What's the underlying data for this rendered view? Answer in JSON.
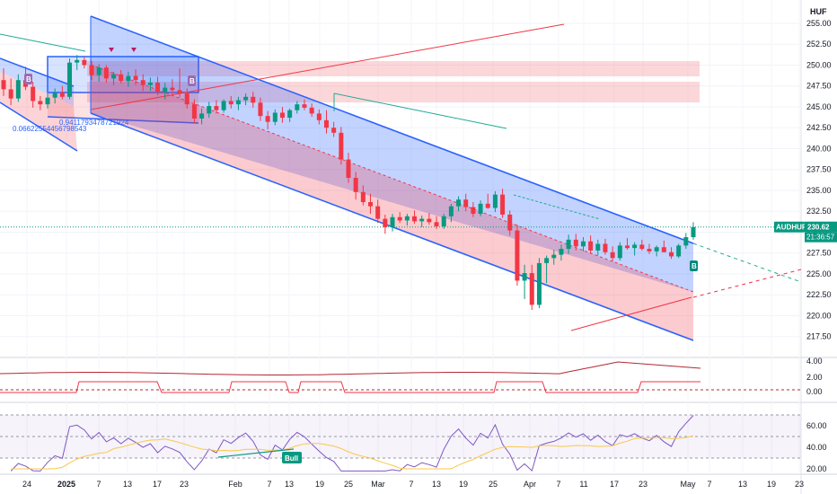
{
  "chart_data": {
    "type": "candlestick",
    "symbol": "AUDHUF",
    "currency": "HUF",
    "last_price": "230.62",
    "countdown": "21:36:57",
    "ylim": [
      215.0,
      256.5
    ],
    "y_ticks": [
      217.5,
      220.0,
      222.5,
      225.0,
      227.5,
      230.0,
      232.5,
      235.0,
      237.5,
      240.0,
      242.5,
      245.0,
      247.5,
      250.0,
      252.5,
      255.0
    ],
    "x_ticks": [
      "24",
      "2025",
      "7",
      "13",
      "17",
      "23",
      "Feb",
      "7",
      "13",
      "19",
      "25",
      "Mar",
      "7",
      "13",
      "19",
      "25",
      "Apr",
      "7",
      "11",
      "17",
      "23",
      "May",
      "7",
      "13",
      "19",
      "23"
    ],
    "annotations": {
      "fib_label_1": "0.9411793478721924",
      "fib_label_2": "0.06622554456798543",
      "signal_badge": "B",
      "bull_label": "Bull"
    },
    "candles": [
      [
        248.2,
        249.6,
        246.3,
        247.1
      ],
      [
        247.1,
        248.4,
        245.2,
        246.0
      ],
      [
        246.0,
        248.9,
        245.6,
        248.2
      ],
      [
        248.2,
        249.8,
        247.0,
        247.4
      ],
      [
        247.4,
        248.0,
        244.9,
        245.7
      ],
      [
        245.7,
        246.3,
        244.6,
        245.3
      ],
      [
        245.3,
        246.6,
        244.8,
        246.1
      ],
      [
        246.1,
        247.2,
        245.4,
        246.7
      ],
      [
        246.7,
        247.5,
        245.9,
        246.2
      ],
      [
        246.2,
        250.8,
        245.9,
        250.3
      ],
      [
        250.3,
        251.2,
        249.4,
        250.6
      ],
      [
        250.6,
        251.0,
        249.6,
        250.0
      ],
      [
        250.0,
        250.5,
        248.2,
        248.8
      ],
      [
        248.8,
        250.1,
        248.0,
        249.7
      ],
      [
        249.7,
        250.0,
        247.9,
        248.4
      ],
      [
        248.4,
        249.2,
        247.6,
        248.9
      ],
      [
        248.9,
        249.4,
        247.8,
        248.1
      ],
      [
        248.1,
        249.2,
        247.4,
        248.7
      ],
      [
        248.7,
        249.5,
        247.6,
        248.2
      ],
      [
        248.2,
        248.9,
        246.9,
        247.6
      ],
      [
        247.6,
        248.5,
        246.9,
        247.9
      ],
      [
        247.9,
        248.6,
        246.4,
        246.8
      ],
      [
        246.8,
        247.9,
        245.9,
        247.3
      ],
      [
        247.3,
        248.3,
        246.4,
        247.0
      ],
      [
        247.0,
        249.6,
        246.1,
        246.6
      ],
      [
        246.6,
        247.2,
        244.8,
        245.3
      ],
      [
        245.3,
        245.9,
        243.0,
        243.6
      ],
      [
        243.6,
        244.8,
        242.9,
        244.2
      ],
      [
        244.2,
        245.6,
        243.7,
        245.1
      ],
      [
        245.1,
        245.8,
        244.2,
        244.6
      ],
      [
        244.6,
        245.9,
        244.3,
        245.7
      ],
      [
        245.7,
        246.3,
        244.8,
        245.3
      ],
      [
        245.3,
        246.2,
        244.6,
        245.8
      ],
      [
        245.8,
        246.6,
        245.2,
        246.2
      ],
      [
        246.2,
        246.8,
        244.9,
        245.5
      ],
      [
        245.5,
        246.1,
        243.3,
        243.9
      ],
      [
        243.9,
        244.5,
        242.3,
        243.2
      ],
      [
        243.2,
        244.7,
        242.8,
        244.3
      ],
      [
        244.3,
        245.0,
        243.1,
        243.7
      ],
      [
        243.7,
        244.8,
        243.2,
        244.6
      ],
      [
        244.6,
        245.7,
        244.2,
        245.3
      ],
      [
        245.3,
        245.9,
        244.6,
        244.9
      ],
      [
        244.9,
        245.4,
        243.8,
        244.2
      ],
      [
        244.2,
        244.7,
        242.9,
        243.4
      ],
      [
        243.4,
        244.6,
        241.8,
        242.5
      ],
      [
        242.5,
        243.2,
        241.4,
        241.9
      ],
      [
        241.9,
        242.6,
        238.1,
        238.7
      ],
      [
        238.7,
        239.5,
        235.9,
        236.5
      ],
      [
        236.5,
        237.2,
        233.9,
        234.8
      ],
      [
        234.8,
        235.6,
        233.2,
        233.6
      ],
      [
        233.6,
        234.6,
        232.2,
        233.1
      ],
      [
        233.1,
        233.9,
        231.1,
        231.6
      ],
      [
        231.6,
        232.1,
        229.8,
        230.6
      ],
      [
        230.6,
        232.2,
        230.1,
        231.8
      ],
      [
        231.8,
        232.4,
        231.1,
        231.4
      ],
      [
        231.4,
        232.2,
        230.8,
        231.9
      ],
      [
        231.9,
        232.6,
        231.0,
        231.3
      ],
      [
        231.3,
        232.0,
        230.6,
        231.6
      ],
      [
        231.6,
        232.3,
        230.9,
        231.2
      ],
      [
        231.2,
        231.9,
        230.4,
        230.7
      ],
      [
        230.7,
        232.2,
        230.4,
        231.9
      ],
      [
        231.9,
        233.4,
        231.2,
        233.1
      ],
      [
        233.1,
        234.3,
        232.5,
        233.9
      ],
      [
        233.9,
        234.6,
        232.5,
        233.0
      ],
      [
        233.0,
        233.6,
        231.8,
        232.2
      ],
      [
        232.2,
        233.8,
        231.9,
        233.4
      ],
      [
        233.4,
        234.6,
        232.8,
        232.9
      ],
      [
        232.9,
        234.9,
        232.4,
        234.5
      ],
      [
        234.5,
        235.2,
        231.7,
        232.1
      ],
      [
        232.1,
        232.6,
        229.6,
        230.2
      ],
      [
        230.2,
        230.9,
        223.6,
        224.2
      ],
      [
        224.2,
        226.1,
        222.0,
        225.1
      ],
      [
        225.1,
        226.1,
        220.7,
        221.3
      ],
      [
        221.3,
        226.9,
        220.9,
        226.3
      ],
      [
        226.3,
        227.2,
        223.9,
        226.9
      ],
      [
        226.9,
        227.9,
        226.1,
        227.3
      ],
      [
        227.3,
        228.5,
        226.6,
        228.0
      ],
      [
        228.0,
        229.7,
        227.4,
        229.1
      ],
      [
        229.1,
        229.8,
        227.8,
        228.3
      ],
      [
        228.3,
        229.4,
        227.7,
        228.9
      ],
      [
        228.9,
        229.6,
        227.4,
        227.8
      ],
      [
        227.8,
        229.1,
        227.2,
        228.6
      ],
      [
        228.6,
        229.2,
        227.3,
        227.6
      ],
      [
        227.6,
        228.3,
        226.5,
        226.9
      ],
      [
        226.9,
        228.8,
        226.6,
        228.4
      ],
      [
        228.4,
        229.3,
        227.9,
        228.1
      ],
      [
        228.1,
        228.8,
        227.2,
        228.5
      ],
      [
        228.5,
        229.1,
        227.8,
        228.0
      ],
      [
        228.0,
        228.6,
        227.4,
        227.7
      ],
      [
        227.7,
        228.4,
        227.1,
        228.2
      ],
      [
        228.2,
        229.0,
        227.6,
        227.6
      ],
      [
        227.6,
        228.2,
        226.8,
        227.1
      ],
      [
        227.1,
        228.6,
        226.9,
        228.4
      ],
      [
        228.4,
        229.9,
        228.0,
        229.4
      ],
      [
        229.4,
        231.2,
        229.1,
        230.6
      ]
    ],
    "rsi": {
      "levels": [
        70,
        50,
        30
      ],
      "ylim": [
        15,
        80
      ],
      "ticks": [
        20.0,
        40.0,
        60.0
      ]
    },
    "indicator_upper": {
      "ticks": [
        "4.00",
        "2.00",
        "0.00"
      ]
    }
  }
}
